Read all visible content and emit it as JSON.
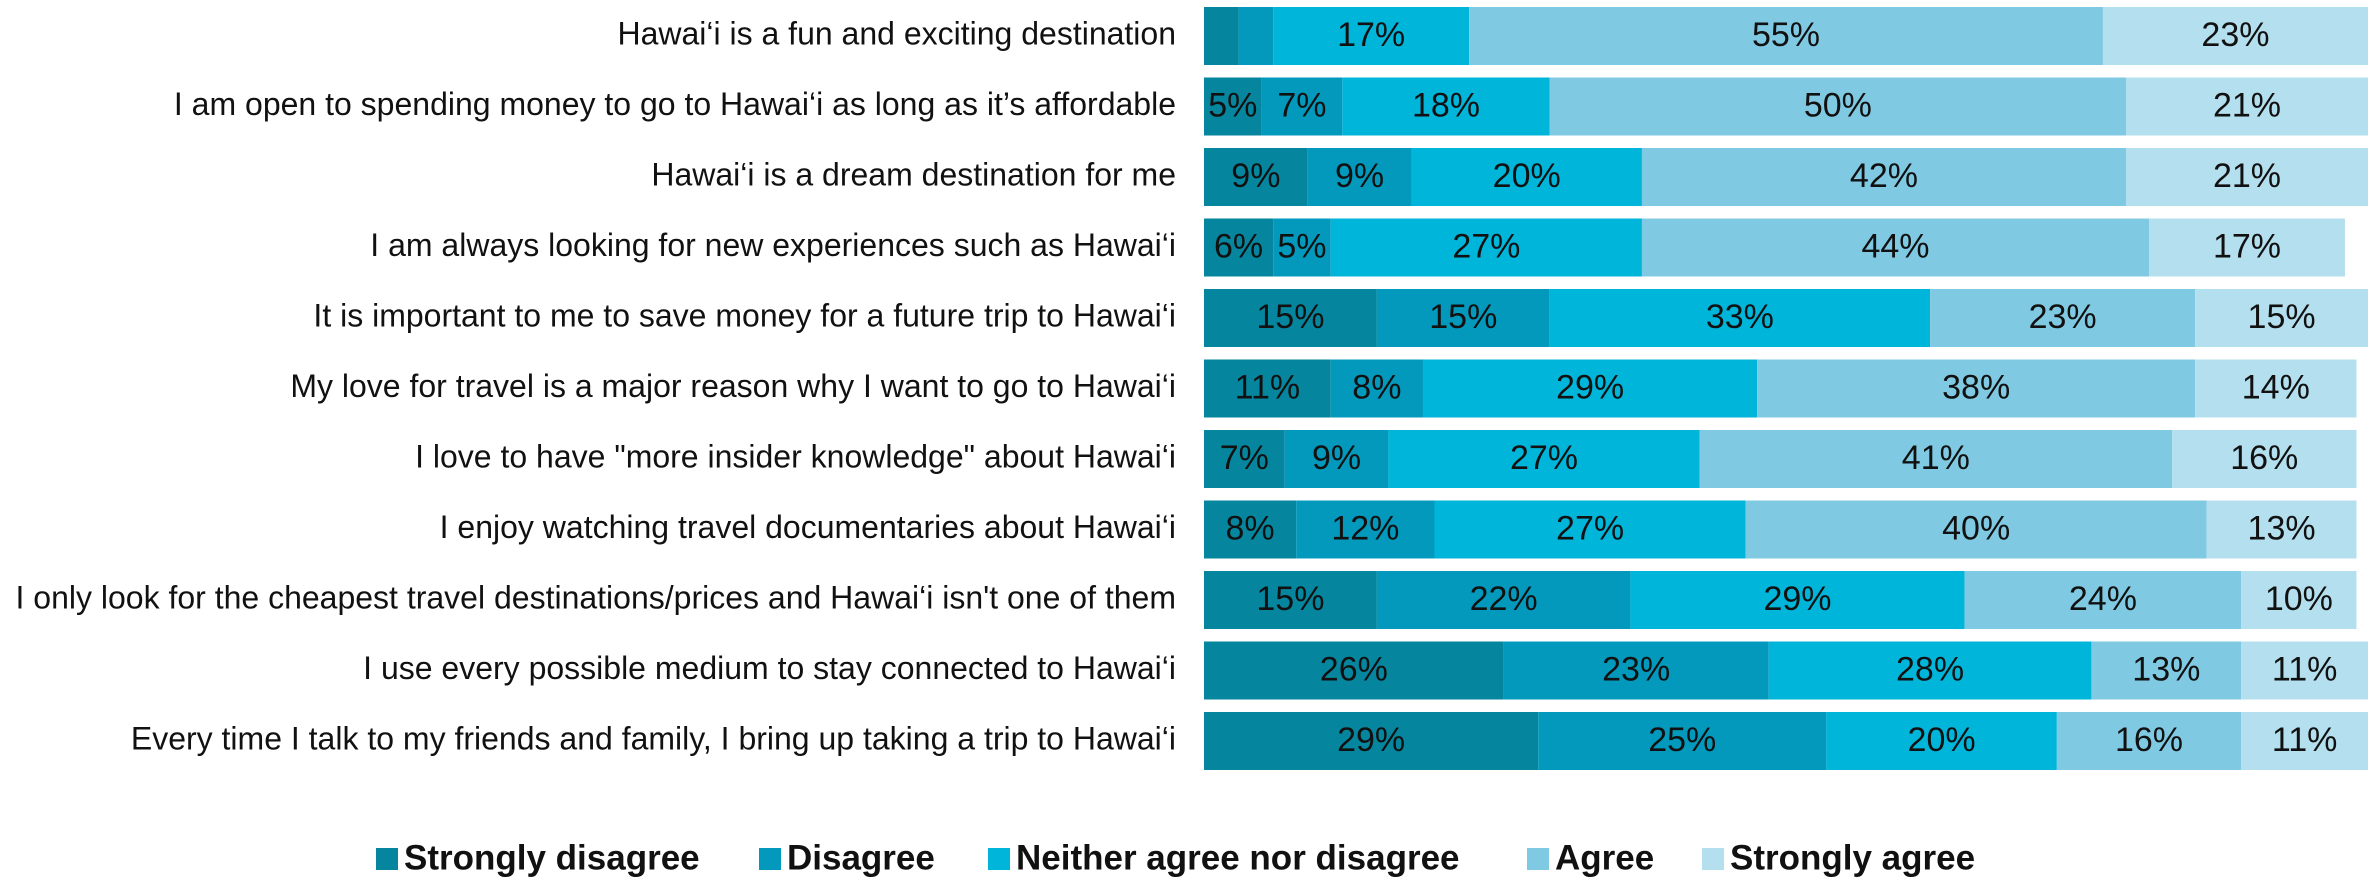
{
  "chart_data": {
    "type": "stacked-bar-horizontal",
    "categories": [
      "Hawai‘i is a fun and exciting destination",
      "I am open to spending money to go to Hawai‘i as long as it’s affordable",
      "Hawai‘i is a dream destination for me",
      "I am always looking for new experiences such as Hawai‘i",
      "It is important to me to save money for a future trip to Hawai‘i",
      "My love for travel is a major reason why I want to go to Hawai‘i",
      "I love to have \"more insider knowledge\" about Hawai‘i",
      "I enjoy watching travel documentaries about Hawai‘i",
      "I only look for the cheapest travel destinations/prices and Hawai‘i isn't one of them",
      "I use every possible medium to stay connected to Hawai‘i",
      "Every time I talk to my friends and family, I bring up taking a trip to Hawai‘i"
    ],
    "series": [
      {
        "name": "Strongly disagree",
        "color": "#06869e",
        "values": [
          3,
          5,
          9,
          6,
          15,
          11,
          7,
          8,
          15,
          26,
          29
        ],
        "value_labels": [
          null,
          "5%",
          "9%",
          "6%",
          "15%",
          "11%",
          "7%",
          "8%",
          "15%",
          "26%",
          "29%"
        ]
      },
      {
        "name": "Disagree",
        "color": "#0399bc",
        "values": [
          3,
          7,
          9,
          5,
          15,
          8,
          9,
          12,
          22,
          23,
          25
        ],
        "value_labels": [
          null,
          "7%",
          "9%",
          "5%",
          "15%",
          "8%",
          "9%",
          "12%",
          "22%",
          "23%",
          "25%"
        ]
      },
      {
        "name": "Neither agree nor disagree",
        "color": "#00b5da",
        "values": [
          17,
          18,
          20,
          27,
          33,
          29,
          27,
          27,
          29,
          28,
          20
        ],
        "value_labels": [
          "17%",
          "18%",
          "20%",
          "27%",
          "33%",
          "29%",
          "27%",
          "27%",
          "29%",
          "28%",
          "20%"
        ]
      },
      {
        "name": "Agree",
        "color": "#80c9e3",
        "values": [
          55,
          50,
          42,
          44,
          23,
          38,
          41,
          40,
          24,
          13,
          16
        ],
        "value_labels": [
          "55%",
          "50%",
          "42%",
          "44%",
          "23%",
          "38%",
          "41%",
          "40%",
          "24%",
          "13%",
          "16%"
        ]
      },
      {
        "name": "Strongly agree",
        "color": "#b4dfee",
        "values": [
          23,
          21,
          21,
          17,
          15,
          14,
          16,
          13,
          10,
          11,
          11
        ],
        "value_labels": [
          "23%",
          "21%",
          "21%",
          "17%",
          "15%",
          "14%",
          "16%",
          "13%",
          "10%",
          "11%",
          "11%"
        ]
      }
    ],
    "xlim": [
      0,
      101
    ]
  }
}
